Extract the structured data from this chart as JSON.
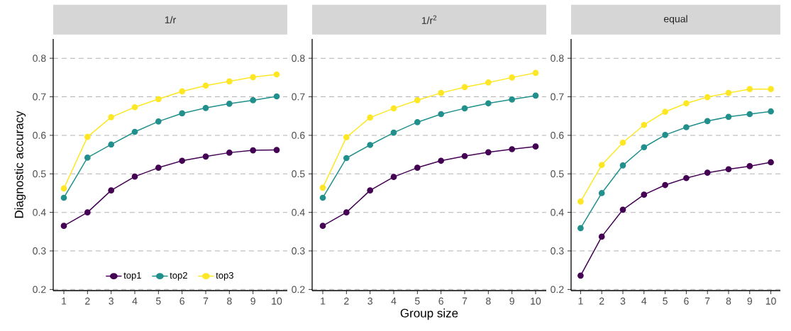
{
  "chart_data": [
    {
      "type": "line",
      "title": "1/r",
      "ylabel": "Diagnostic accuracy",
      "x": [
        1,
        2,
        3,
        4,
        5,
        6,
        7,
        8,
        9,
        10
      ],
      "xlim": [
        0.55,
        10.45
      ],
      "xticks": [
        1,
        2,
        3,
        4,
        5,
        6,
        7,
        8,
        9,
        10
      ],
      "ylim": [
        0.197,
        0.85
      ],
      "yticks": [
        0.2,
        0.3,
        0.4,
        0.5,
        0.6,
        0.7,
        0.8
      ],
      "grid": "y",
      "marker": "circle",
      "line_style": "solid",
      "legend": "bottom",
      "series": [
        {
          "name": "top1",
          "color": "#440154",
          "values": [
            0.365,
            0.4,
            0.457,
            0.493,
            0.516,
            0.534,
            0.545,
            0.555,
            0.561,
            0.562
          ]
        },
        {
          "name": "top2",
          "color": "#21908c",
          "values": [
            0.438,
            0.542,
            0.576,
            0.609,
            0.636,
            0.657,
            0.671,
            0.682,
            0.691,
            0.701
          ]
        },
        {
          "name": "top3",
          "color": "#fde725",
          "values": [
            0.462,
            0.596,
            0.647,
            0.673,
            0.694,
            0.714,
            0.729,
            0.74,
            0.751,
            0.758
          ]
        }
      ]
    },
    {
      "type": "line",
      "title": "1/r$^{2}$",
      "xlabel": "Group size",
      "x": [
        1,
        2,
        3,
        4,
        5,
        6,
        7,
        8,
        9,
        10
      ],
      "xlim": [
        0.55,
        10.45
      ],
      "xticks": [
        1,
        2,
        3,
        4,
        5,
        6,
        7,
        8,
        9,
        10
      ],
      "ylim": [
        0.197,
        0.85
      ],
      "yticks": [
        0.2,
        0.3,
        0.4,
        0.5,
        0.6,
        0.7,
        0.8
      ],
      "grid": "y",
      "marker": "circle",
      "line_style": "solid",
      "series": [
        {
          "color": "#440154",
          "values": [
            0.365,
            0.4,
            0.457,
            0.492,
            0.516,
            0.534,
            0.546,
            0.556,
            0.564,
            0.571
          ]
        },
        {
          "color": "#21908c",
          "values": [
            0.438,
            0.541,
            0.575,
            0.607,
            0.634,
            0.655,
            0.67,
            0.683,
            0.693,
            0.703
          ]
        },
        {
          "color": "#fde725",
          "values": [
            0.464,
            0.595,
            0.646,
            0.67,
            0.691,
            0.71,
            0.725,
            0.737,
            0.75,
            0.762
          ]
        }
      ]
    },
    {
      "type": "line",
      "title": "equal",
      "x": [
        1,
        2,
        3,
        4,
        5,
        6,
        7,
        8,
        9,
        10
      ],
      "xlim": [
        0.55,
        10.45
      ],
      "xticks": [
        1,
        2,
        3,
        4,
        5,
        6,
        7,
        8,
        9,
        10
      ],
      "ylim": [
        0.197,
        0.85
      ],
      "yticks": [
        0.2,
        0.3,
        0.4,
        0.5,
        0.6,
        0.7,
        0.8
      ],
      "grid": "y",
      "marker": "circle",
      "line_style": "solid",
      "series": [
        {
          "color": "#440154",
          "values": [
            0.236,
            0.337,
            0.407,
            0.446,
            0.471,
            0.489,
            0.503,
            0.512,
            0.52,
            0.53
          ]
        },
        {
          "color": "#21908c",
          "values": [
            0.359,
            0.45,
            0.522,
            0.569,
            0.601,
            0.621,
            0.637,
            0.648,
            0.655,
            0.662
          ]
        },
        {
          "color": "#fde725",
          "values": [
            0.428,
            0.523,
            0.581,
            0.627,
            0.661,
            0.683,
            0.699,
            0.71,
            0.72,
            0.72
          ]
        }
      ]
    }
  ]
}
